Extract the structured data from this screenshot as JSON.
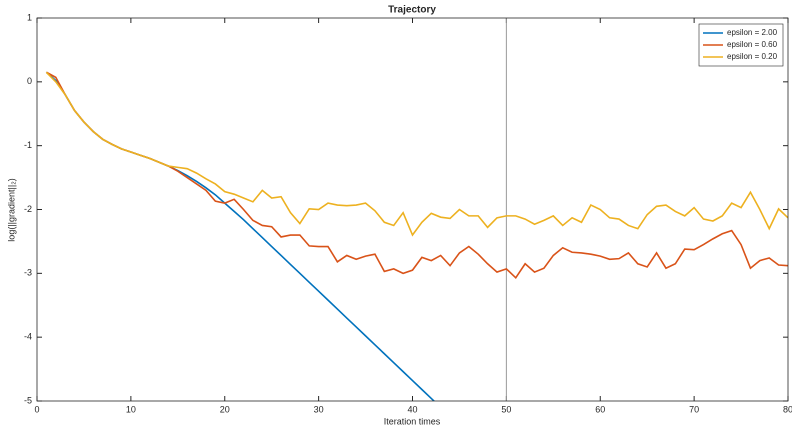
{
  "chart_data": {
    "type": "line",
    "title": "Trajectory",
    "xlabel": "Iteration times",
    "ylabel": "log(||gradient||₂)",
    "x": [
      1,
      2,
      3,
      4,
      5,
      6,
      7,
      8,
      9,
      10,
      11,
      12,
      13,
      14,
      15,
      16,
      17,
      18,
      19,
      20,
      21,
      22,
      23,
      24,
      25,
      26,
      27,
      28,
      29,
      30,
      31,
      32,
      33,
      34,
      35,
      36,
      37,
      38,
      39,
      40,
      41,
      42,
      43,
      44,
      45,
      46,
      47,
      48,
      49,
      50,
      51,
      52,
      53,
      54,
      55,
      56,
      57,
      58,
      59,
      60,
      61,
      62,
      63,
      64,
      65,
      66,
      67,
      68,
      69,
      70,
      71,
      72,
      73,
      74,
      75,
      76,
      77,
      78,
      79,
      80
    ],
    "series": [
      {
        "name": "epsilon = 2.00",
        "color": "#0072bd",
        "values": [
          0.15,
          0.02,
          -0.2,
          -0.45,
          -0.63,
          -0.78,
          -0.9,
          -0.98,
          -1.05,
          -1.1,
          -1.15,
          -1.2,
          -1.26,
          -1.32,
          -1.39,
          -1.47,
          -1.56,
          -1.66,
          -1.77,
          -1.9,
          -2.03,
          -2.16,
          -2.3,
          -2.44,
          -2.58,
          -2.72,
          -2.86,
          -3.0,
          -3.14,
          -3.28,
          -3.42,
          -3.56,
          -3.7,
          -3.84,
          -3.98,
          -4.12,
          -4.26,
          -4.4,
          -4.54,
          -4.68,
          -4.82,
          -4.96,
          -5.1,
          null,
          null,
          null,
          null,
          null,
          null,
          null,
          null,
          null,
          null,
          null,
          null,
          null,
          null,
          null,
          null,
          null,
          null,
          null,
          null,
          null,
          null,
          null,
          null,
          null,
          null,
          null,
          null,
          null,
          null,
          null,
          null,
          null,
          null,
          null,
          null,
          null
        ]
      },
      {
        "name": "epsilon = 0.60",
        "color": "#d95319",
        "values": [
          0.15,
          0.07,
          -0.2,
          -0.45,
          -0.63,
          -0.78,
          -0.9,
          -0.98,
          -1.05,
          -1.1,
          -1.15,
          -1.2,
          -1.26,
          -1.32,
          -1.4,
          -1.5,
          -1.6,
          -1.7,
          -1.87,
          -1.9,
          -1.84,
          -2.0,
          -2.17,
          -2.25,
          -2.27,
          -2.43,
          -2.4,
          -2.4,
          -2.57,
          -2.58,
          -2.58,
          -2.82,
          -2.72,
          -2.78,
          -2.73,
          -2.7,
          -2.97,
          -2.93,
          -3.0,
          -2.95,
          -2.75,
          -2.8,
          -2.72,
          -2.88,
          -2.68,
          -2.58,
          -2.7,
          -2.85,
          -2.98,
          -2.93,
          -3.07,
          -2.85,
          -2.98,
          -2.92,
          -2.72,
          -2.6,
          -2.67,
          -2.68,
          -2.7,
          -2.73,
          -2.78,
          -2.77,
          -2.68,
          -2.85,
          -2.9,
          -2.68,
          -2.92,
          -2.85,
          -2.62,
          -2.63,
          -2.55,
          -2.46,
          -2.38,
          -2.33,
          -2.55,
          -2.92,
          -2.8,
          -2.76,
          -2.87,
          -2.88
        ]
      },
      {
        "name": "epsilon = 0.20",
        "color": "#edb120",
        "values": [
          0.15,
          0.0,
          -0.2,
          -0.45,
          -0.63,
          -0.78,
          -0.9,
          -0.98,
          -1.05,
          -1.1,
          -1.15,
          -1.2,
          -1.26,
          -1.32,
          -1.34,
          -1.36,
          -1.43,
          -1.52,
          -1.6,
          -1.72,
          -1.76,
          -1.82,
          -1.88,
          -1.7,
          -1.82,
          -1.8,
          -2.05,
          -2.22,
          -1.99,
          -2.0,
          -1.9,
          -1.93,
          -1.94,
          -1.93,
          -1.9,
          -2.02,
          -2.2,
          -2.25,
          -2.05,
          -2.4,
          -2.2,
          -2.06,
          -2.12,
          -2.14,
          -2.0,
          -2.1,
          -2.1,
          -2.28,
          -2.13,
          -2.1,
          -2.1,
          -2.15,
          -2.23,
          -2.17,
          -2.1,
          -2.25,
          -2.13,
          -2.2,
          -1.93,
          -2.0,
          -2.13,
          -2.15,
          -2.25,
          -2.3,
          -2.08,
          -1.95,
          -1.93,
          -2.03,
          -2.1,
          -1.97,
          -2.15,
          -2.18,
          -2.1,
          -1.9,
          -1.97,
          -1.73,
          -2.0,
          -2.3,
          -1.99,
          -2.13
        ]
      }
    ],
    "xlim": [
      0,
      80
    ],
    "xticks": [
      0,
      10,
      20,
      30,
      40,
      50,
      60,
      70,
      80
    ],
    "ylim": [
      -5,
      1
    ],
    "yticks": [
      -5,
      -4,
      -3,
      -2,
      -1,
      0,
      1
    ],
    "vline": 50,
    "grid": false,
    "legend": "northeast"
  }
}
